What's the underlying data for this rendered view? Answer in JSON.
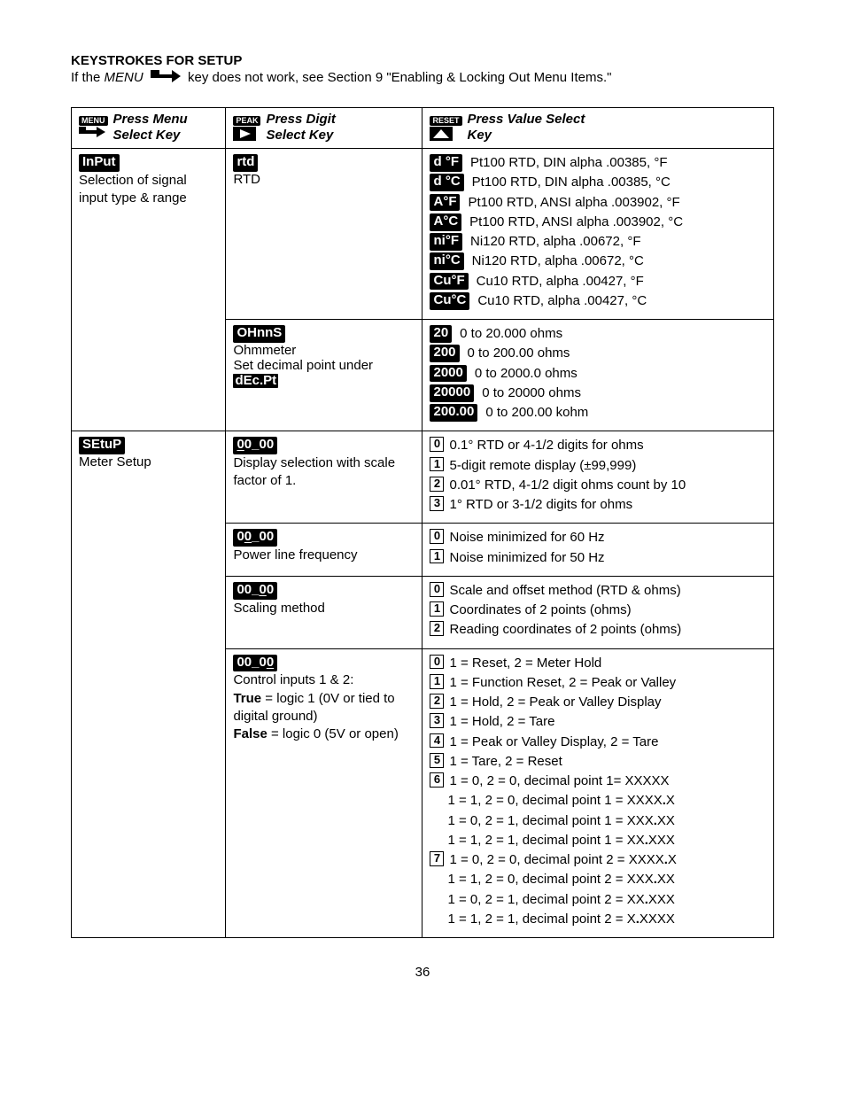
{
  "heading": "KEYSTROKES FOR SETUP",
  "intro_prefix": "If the ",
  "intro_menu": "MENU",
  "intro_suffix": " key does not work, see Section 9 \"Enabling & Locking Out Menu Items.\"",
  "hdr": {
    "c1_btn": "MENU",
    "c1_line1": "Press Menu",
    "c1_line2": "Select Key",
    "c2_btn": "PEAK",
    "c2_line1": "Press Digit",
    "c2_line2": "Select Key",
    "c3_btn": "RESET",
    "c3_line1": "Press Value Select",
    "c3_line2": "Key"
  },
  "r1": {
    "c1_black": "InPut",
    "c1_text": "Selection of signal input type & range",
    "c2a_black": "rtd",
    "c2a_text": "RTD",
    "rtd": [
      {
        "k": "d °F",
        "d": "Pt100 RTD, DIN alpha .00385, °F"
      },
      {
        "k": "d °C",
        "d": "Pt100 RTD, DIN alpha .00385, °C"
      },
      {
        "k": "A°F",
        "d": "Pt100 RTD, ANSI alpha .003902, °F"
      },
      {
        "k": "A°C",
        "d": "Pt100 RTD, ANSI alpha .003902, °C"
      },
      {
        "k": "ni°F",
        "d": "Ni120 RTD, alpha .00672, °F"
      },
      {
        "k": "ni°C",
        "d": "Ni120 RTD, alpha .00672, °C"
      },
      {
        "k": "Cu°F",
        "d": "Cu10 RTD, alpha .00427, °F"
      },
      {
        "k": "Cu°C",
        "d": "Cu10 RTD, alpha .00427, °C"
      }
    ],
    "c2b_black": "OHnnS",
    "c2b_l1": "Ohmmeter",
    "c2b_l2_a": "Set decimal point under ",
    "c2b_l2_b": "dEc.Pt",
    "ohms": [
      {
        "k": "20",
        "d": "0 to 20.000 ohms"
      },
      {
        "k": "200",
        "d": "0 to 200.00 ohms"
      },
      {
        "k": "2000",
        "d": "0 to 2000.0 ohms"
      },
      {
        "k": "20000",
        "d": "0 to 20000 ohms"
      },
      {
        "k": "200.00",
        "d": "0 to 200.00 kohm"
      }
    ]
  },
  "r2": {
    "c1_black": "SEtuP",
    "c1_text": "Meter Setup",
    "blk1": {
      "title": "00_00",
      "desc": "Display selection with scale factor of 1.",
      "items": [
        {
          "i": "0",
          "d": "0.1° RTD or  4-1/2 digits for ohms"
        },
        {
          "i": "1",
          "d": "5-digit remote display (±99,999)"
        },
        {
          "i": "2",
          "d": "0.01° RTD, 4-1/2 digit ohms count by 10"
        },
        {
          "i": "3",
          "d": "1° RTD or 3-1/2 digits for ohms"
        }
      ]
    },
    "blk2": {
      "title": "00_00",
      "desc": "Power line frequency",
      "items": [
        {
          "i": "0",
          "d": "Noise minimized for 60 Hz"
        },
        {
          "i": "1",
          "d": "Noise minimized for 50 Hz"
        }
      ]
    },
    "blk3": {
      "title": "00_00",
      "desc": "Scaling method",
      "items": [
        {
          "i": "0",
          "d": "Scale and offset method (RTD & ohms)"
        },
        {
          "i": "1",
          "d": "Coordinates of 2 points (ohms)"
        },
        {
          "i": "2",
          "d": "Reading coordinates of 2 points (ohms)"
        }
      ]
    },
    "blk4": {
      "title": "00_00",
      "desc_l1": "Control inputs 1 & 2:",
      "desc_true": "True",
      "desc_true_rest": " = logic 1 (0V or tied to digital ground)",
      "desc_false": "False",
      "desc_false_rest": " = logic 0 (5V or open)",
      "items": [
        {
          "i": "0",
          "d": "1 = Reset, 2 = Meter Hold"
        },
        {
          "i": "1",
          "d": "1 = Function Reset, 2 = Peak or Valley"
        },
        {
          "i": "2",
          "d": "1 = Hold, 2 = Peak or Valley Display"
        },
        {
          "i": "3",
          "d": "1 = Hold, 2 = Tare"
        },
        {
          "i": "4",
          "d": "1 = Peak or Valley Display, 2 = Tare"
        },
        {
          "i": "5",
          "d": "1 = Tare, 2 = Reset"
        }
      ],
      "six_idx": "6",
      "six": [
        "1 = 0, 2 = 0, decimal point 1= XXXXX",
        "1 = 1, 2 = 0, decimal point 1 = XXXX.X",
        "1 = 0, 2 = 1, decimal point 1 = XXX.XX",
        "1 = 1, 2 = 1, decimal point 1 = XX.XXX"
      ],
      "seven_idx": "7",
      "seven": [
        "1 = 0, 2 = 0, decimal point 2 = XXXX.X",
        "1 = 1, 2 = 0, decimal point 2 = XXX.XX",
        "1 = 0, 2 = 1, decimal point 2 = XX.XXX",
        "1 = 1, 2 = 1, decimal point 2 = X.XXXX"
      ]
    }
  },
  "page": "36"
}
